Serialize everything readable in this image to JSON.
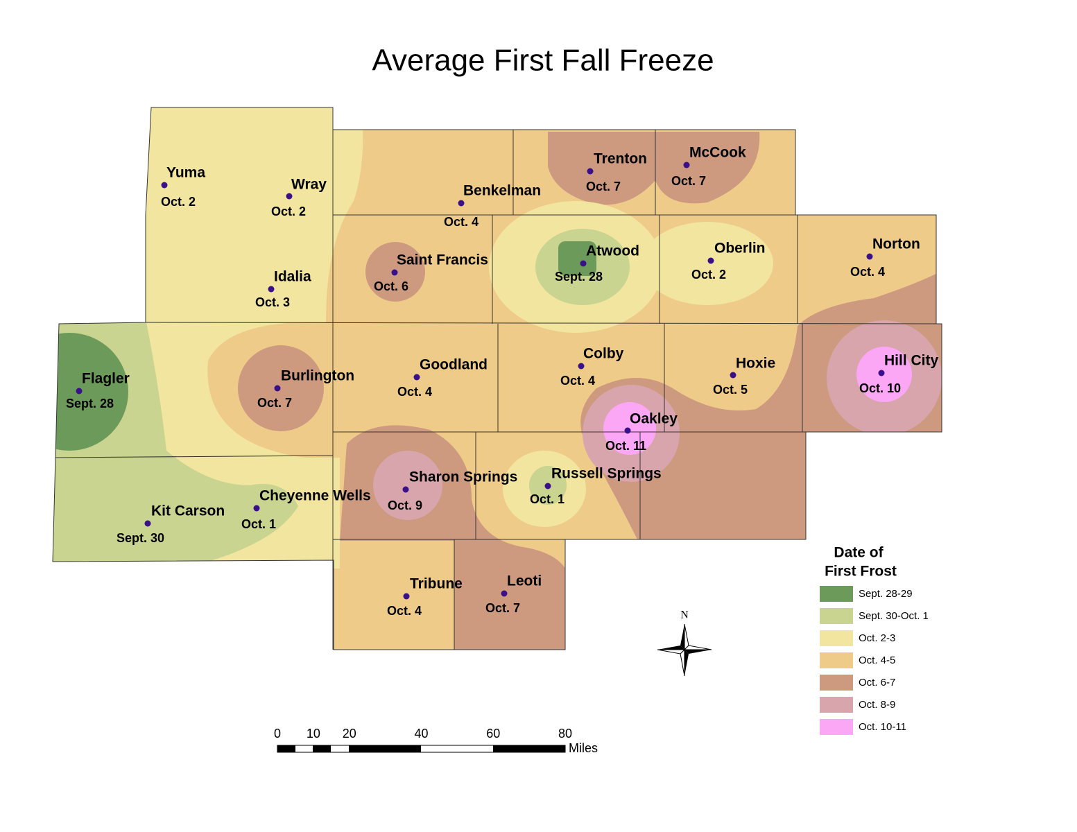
{
  "title": "Average First Fall Freeze",
  "stations": [
    {
      "name": "Yuma",
      "date": "Oct. 2"
    },
    {
      "name": "Wray",
      "date": "Oct. 2"
    },
    {
      "name": "Idalia",
      "date": "Oct. 3"
    },
    {
      "name": "Benkelman",
      "date": "Oct. 4"
    },
    {
      "name": "Trenton",
      "date": "Oct. 7"
    },
    {
      "name": "McCook",
      "date": "Oct. 7"
    },
    {
      "name": "Saint Francis",
      "date": "Oct. 6"
    },
    {
      "name": "Atwood",
      "date": "Sept. 28"
    },
    {
      "name": "Oberlin",
      "date": "Oct. 2"
    },
    {
      "name": "Norton",
      "date": "Oct. 4"
    },
    {
      "name": "Flagler",
      "date": "Sept. 28"
    },
    {
      "name": "Burlington",
      "date": "Oct. 7"
    },
    {
      "name": "Goodland",
      "date": "Oct. 4"
    },
    {
      "name": "Colby",
      "date": "Oct. 4"
    },
    {
      "name": "Hoxie",
      "date": "Oct. 5"
    },
    {
      "name": "Hill City",
      "date": "Oct. 10"
    },
    {
      "name": "Oakley",
      "date": "Oct. 11"
    },
    {
      "name": "Sharon Springs",
      "date": "Oct. 9"
    },
    {
      "name": "Russell Springs",
      "date": "Oct. 1"
    },
    {
      "name": "Cheyenne Wells",
      "date": "Oct. 1"
    },
    {
      "name": "Kit Carson",
      "date": "Sept. 30"
    },
    {
      "name": "Tribune",
      "date": "Oct. 4"
    },
    {
      "name": "Leoti",
      "date": "Oct. 7"
    }
  ],
  "legend": {
    "title": [
      "Date of",
      "First Frost"
    ],
    "items": [
      {
        "label": "Sept. 28-29",
        "color": "#6b9a5a"
      },
      {
        "label": "Sept. 30-Oct. 1",
        "color": "#c8d48f"
      },
      {
        "label": "Oct. 2-3",
        "color": "#f1e59f"
      },
      {
        "label": "Oct. 4-5",
        "color": "#efcb8a"
      },
      {
        "label": "Oct. 6-7",
        "color": "#cd9a80"
      },
      {
        "label": "Oct. 8-9",
        "color": "#d9a5ad"
      },
      {
        "label": "Oct. 10-11",
        "color": "#fca6f6"
      }
    ]
  },
  "scale_bar": {
    "ticks": [
      0,
      10,
      20,
      40,
      60,
      80
    ],
    "unit": "Miles"
  },
  "north_label": "N"
}
